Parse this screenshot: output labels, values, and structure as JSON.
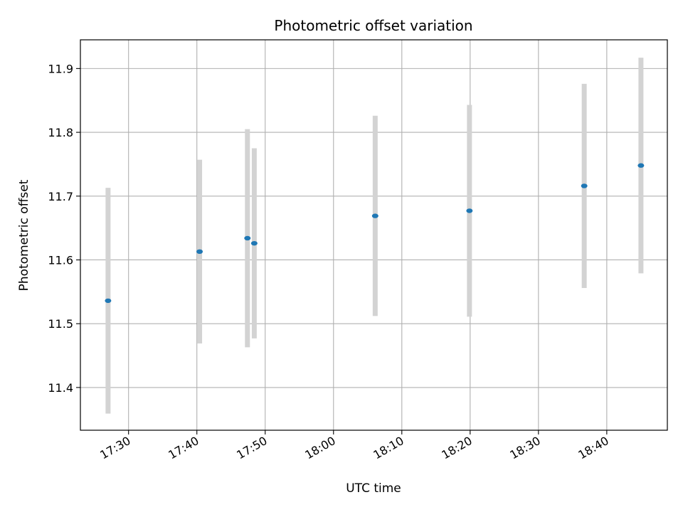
{
  "chart_data": {
    "type": "scatter",
    "title": "Photometric offset variation",
    "xlabel": "UTC time",
    "ylabel": "Photometric offset",
    "x_tick_labels": [
      "17:30",
      "17:40",
      "17:50",
      "18:00",
      "18:10",
      "18:20",
      "18:30",
      "18:40"
    ],
    "y_tick_labels": [
      "11.4",
      "11.5",
      "11.6",
      "11.7",
      "11.8",
      "11.9"
    ],
    "xlim": [
      "17:22:57",
      "18:48:52"
    ],
    "ylim": [
      11.333,
      11.945
    ],
    "grid": true,
    "series": [
      {
        "points": [
          {
            "x": "17:27:00",
            "y": 11.536,
            "err": 0.177
          },
          {
            "x": "17:40:24",
            "y": 11.613,
            "err": 0.144
          },
          {
            "x": "17:47:24",
            "y": 11.634,
            "err": 0.171
          },
          {
            "x": "17:48:24",
            "y": 11.626,
            "err": 0.149
          },
          {
            "x": "18:06:06",
            "y": 11.669,
            "err": 0.157
          },
          {
            "x": "18:19:54",
            "y": 11.677,
            "err": 0.166
          },
          {
            "x": "18:36:42",
            "y": 11.716,
            "err": 0.16
          },
          {
            "x": "18:45:00",
            "y": 11.748,
            "err": 0.169
          }
        ]
      }
    ],
    "colors": {
      "points": "#1f77b4",
      "errorbars": "#d3d3d3",
      "grid": "#b0b0b0",
      "frame": "#000000"
    }
  }
}
